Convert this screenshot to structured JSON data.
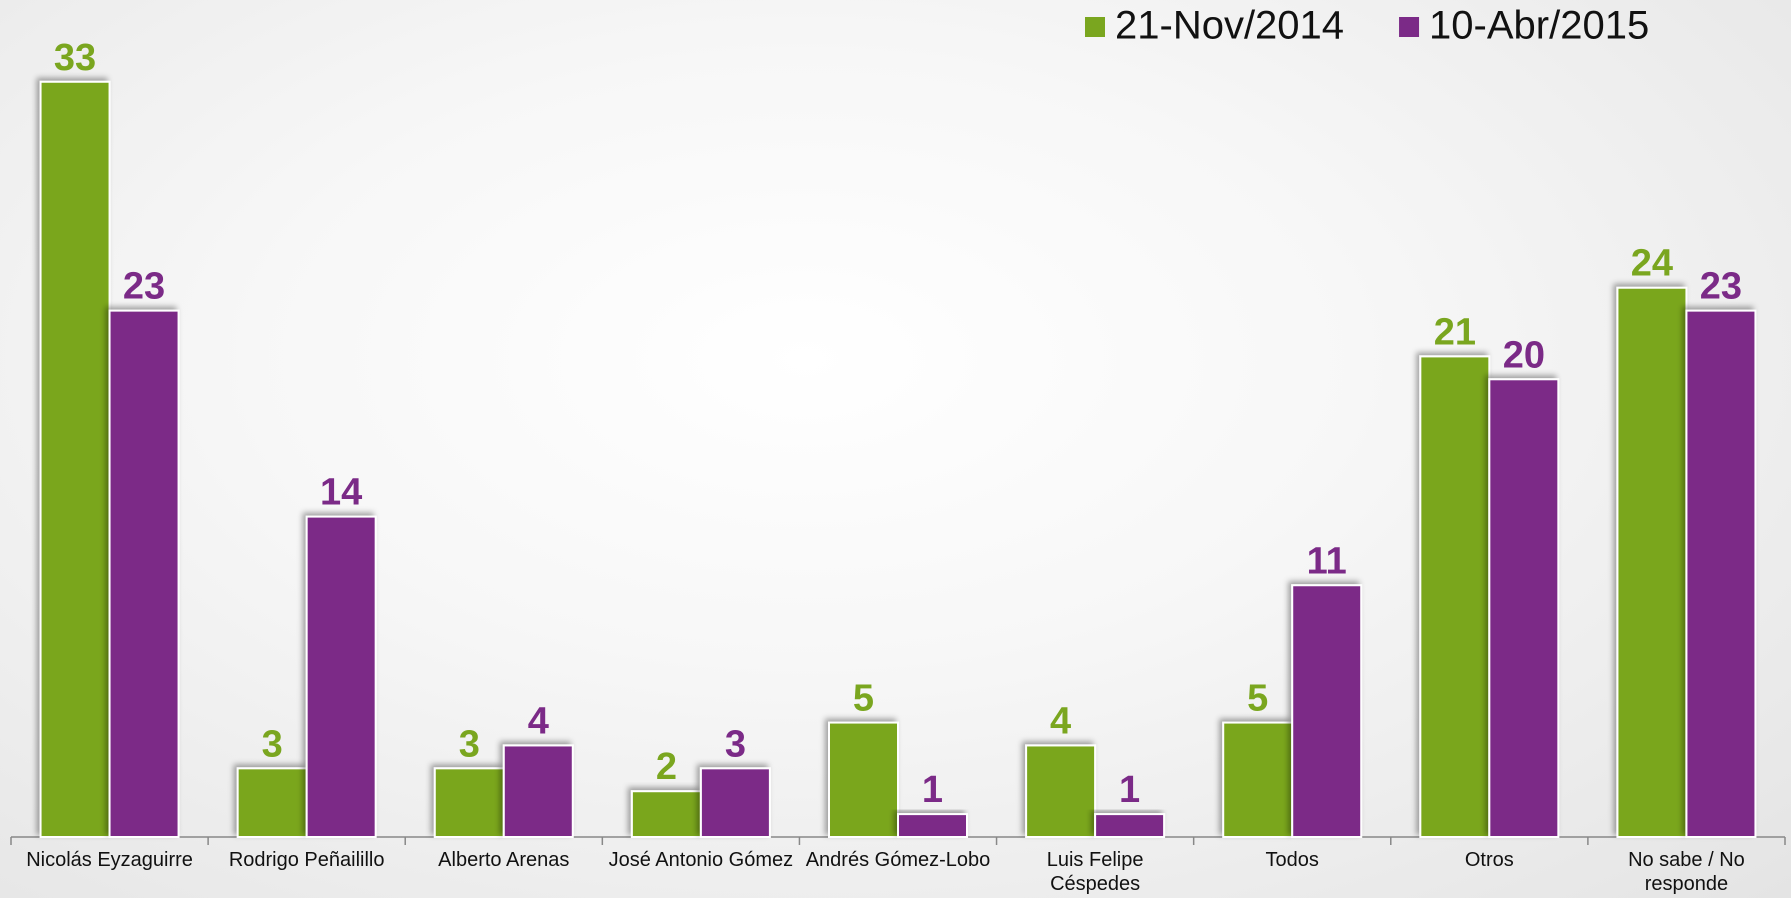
{
  "chart_data": {
    "type": "bar",
    "categories": [
      "Nicolás Eyzaguirre",
      "Rodrigo Peñailillo",
      "Alberto Arenas",
      "José Antonio Gómez",
      "Andrés Gómez-Lobo",
      "Luis Felipe Céspedes",
      "Todos",
      "Otros",
      "No sabe / No responde"
    ],
    "series": [
      {
        "name": "21-Nov/2014",
        "color": "#7aa61f",
        "values": [
          33,
          3,
          3,
          2,
          5,
          4,
          5,
          21,
          24
        ]
      },
      {
        "name": "10-Abr/2015",
        "color": "#7b2a87",
        "values": [
          23,
          14,
          4,
          3,
          1,
          1,
          11,
          20,
          23
        ]
      }
    ],
    "ylim": [
      0,
      35
    ],
    "legend": "top-right"
  }
}
